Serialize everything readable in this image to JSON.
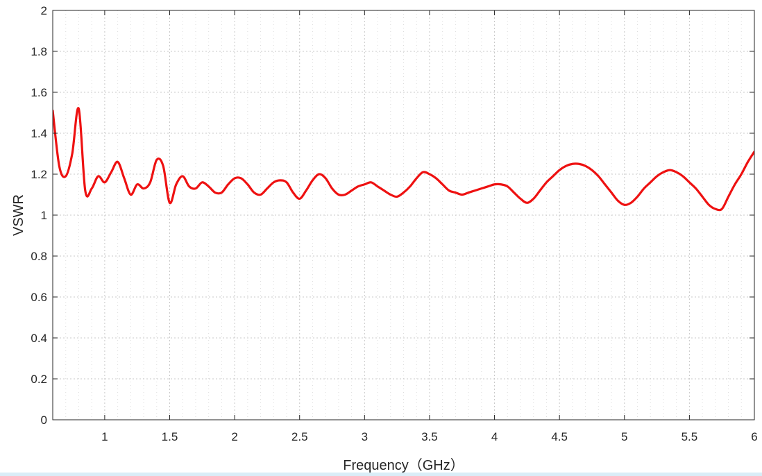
{
  "chart_data": {
    "type": "line",
    "title": "",
    "xlabel": "Frequency（GHz）",
    "ylabel": "VSWR",
    "xlim": [
      0.6,
      6
    ],
    "ylim": [
      0,
      2
    ],
    "grid": true,
    "x_ticks": [
      1,
      1.5,
      2,
      2.5,
      3,
      3.5,
      4,
      4.5,
      5,
      5.5,
      6
    ],
    "x_tick_labels": [
      "1",
      "1.5",
      "2",
      "2.5",
      "3",
      "3.5",
      "4",
      "4.5",
      "5",
      "5.5",
      "6"
    ],
    "y_ticks": [
      0,
      0.2,
      0.4,
      0.6,
      0.8,
      1,
      1.2,
      1.4,
      1.6,
      1.8,
      2
    ],
    "y_tick_labels": [
      "0",
      "0.2",
      "0.4",
      "0.6",
      "0.8",
      "1",
      "1.2",
      "1.4",
      "1.6",
      "1.8",
      "2"
    ],
    "colors": {
      "series": "#ee1111",
      "axis": "#262626",
      "grid": "#c8c8c8"
    },
    "series": [
      {
        "x": [
          0.6,
          0.65,
          0.7,
          0.75,
          0.8,
          0.85,
          0.9,
          0.95,
          1.0,
          1.05,
          1.1,
          1.15,
          1.2,
          1.25,
          1.3,
          1.35,
          1.4,
          1.45,
          1.5,
          1.55,
          1.6,
          1.65,
          1.7,
          1.75,
          1.8,
          1.85,
          1.9,
          1.95,
          2.0,
          2.05,
          2.1,
          2.15,
          2.2,
          2.25,
          2.3,
          2.35,
          2.4,
          2.45,
          2.5,
          2.55,
          2.6,
          2.65,
          2.7,
          2.75,
          2.8,
          2.85,
          2.9,
          2.95,
          3.0,
          3.05,
          3.1,
          3.15,
          3.2,
          3.25,
          3.3,
          3.35,
          3.4,
          3.45,
          3.5,
          3.55,
          3.6,
          3.65,
          3.7,
          3.75,
          3.8,
          3.85,
          3.9,
          3.95,
          4.0,
          4.05,
          4.1,
          4.15,
          4.2,
          4.25,
          4.3,
          4.35,
          4.4,
          4.45,
          4.5,
          4.55,
          4.6,
          4.65,
          4.7,
          4.75,
          4.8,
          4.85,
          4.9,
          4.95,
          5.0,
          5.05,
          5.1,
          5.15,
          5.2,
          5.25,
          5.3,
          5.35,
          5.4,
          5.45,
          5.5,
          5.55,
          5.6,
          5.65,
          5.7,
          5.75,
          5.8,
          5.85,
          5.9,
          5.95,
          6.0
        ],
        "values": [
          1.51,
          1.24,
          1.19,
          1.3,
          1.52,
          1.12,
          1.13,
          1.19,
          1.16,
          1.21,
          1.26,
          1.18,
          1.1,
          1.15,
          1.13,
          1.16,
          1.27,
          1.24,
          1.06,
          1.15,
          1.19,
          1.14,
          1.13,
          1.16,
          1.14,
          1.11,
          1.11,
          1.15,
          1.18,
          1.18,
          1.15,
          1.11,
          1.1,
          1.13,
          1.16,
          1.17,
          1.16,
          1.11,
          1.08,
          1.12,
          1.17,
          1.2,
          1.18,
          1.13,
          1.1,
          1.1,
          1.12,
          1.14,
          1.15,
          1.16,
          1.14,
          1.12,
          1.1,
          1.09,
          1.11,
          1.14,
          1.18,
          1.21,
          1.2,
          1.18,
          1.15,
          1.12,
          1.11,
          1.1,
          1.11,
          1.12,
          1.13,
          1.14,
          1.15,
          1.15,
          1.14,
          1.11,
          1.08,
          1.06,
          1.08,
          1.12,
          1.16,
          1.19,
          1.22,
          1.24,
          1.25,
          1.25,
          1.24,
          1.22,
          1.19,
          1.15,
          1.11,
          1.07,
          1.05,
          1.06,
          1.09,
          1.13,
          1.16,
          1.19,
          1.21,
          1.22,
          1.21,
          1.19,
          1.16,
          1.13,
          1.09,
          1.05,
          1.03,
          1.03,
          1.09,
          1.15,
          1.2,
          1.26,
          1.31
        ]
      }
    ]
  }
}
